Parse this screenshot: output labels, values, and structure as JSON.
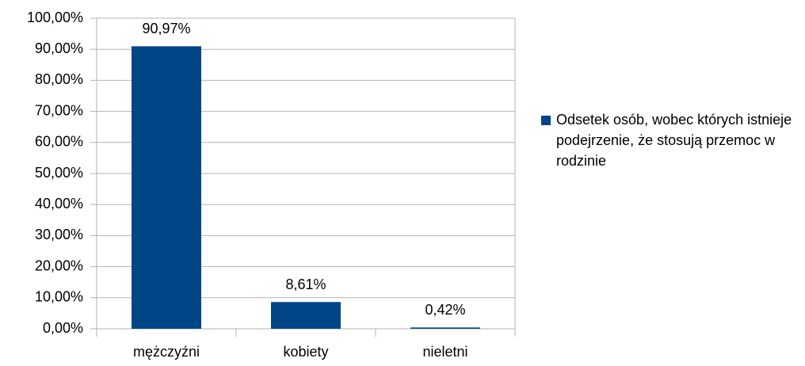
{
  "chart_data": {
    "type": "bar",
    "categories": [
      "mężczyźni",
      "kobiety",
      "nieletni"
    ],
    "series": [
      {
        "name": "Odsetek osób, wobec których istnieje podejrzenie, że stosują przemoc w rodzinie",
        "color": "#004586",
        "values": [
          90.97,
          8.61,
          0.42
        ],
        "value_labels": [
          "90,97%",
          "8,61%",
          "0,42%"
        ]
      }
    ],
    "ylim": [
      0,
      100
    ],
    "yticks": [
      {
        "value": 0,
        "label": "0,00%"
      },
      {
        "value": 10,
        "label": "10,00%"
      },
      {
        "value": 20,
        "label": "20,00%"
      },
      {
        "value": 30,
        "label": "30,00%"
      },
      {
        "value": 40,
        "label": "40,00%"
      },
      {
        "value": 50,
        "label": "50,00%"
      },
      {
        "value": 60,
        "label": "60,00%"
      },
      {
        "value": 70,
        "label": "70,00%"
      },
      {
        "value": 80,
        "label": "80,00%"
      },
      {
        "value": 90,
        "label": "90,00%"
      },
      {
        "value": 100,
        "label": "100,00%"
      }
    ],
    "grid": true,
    "legend": "right"
  }
}
